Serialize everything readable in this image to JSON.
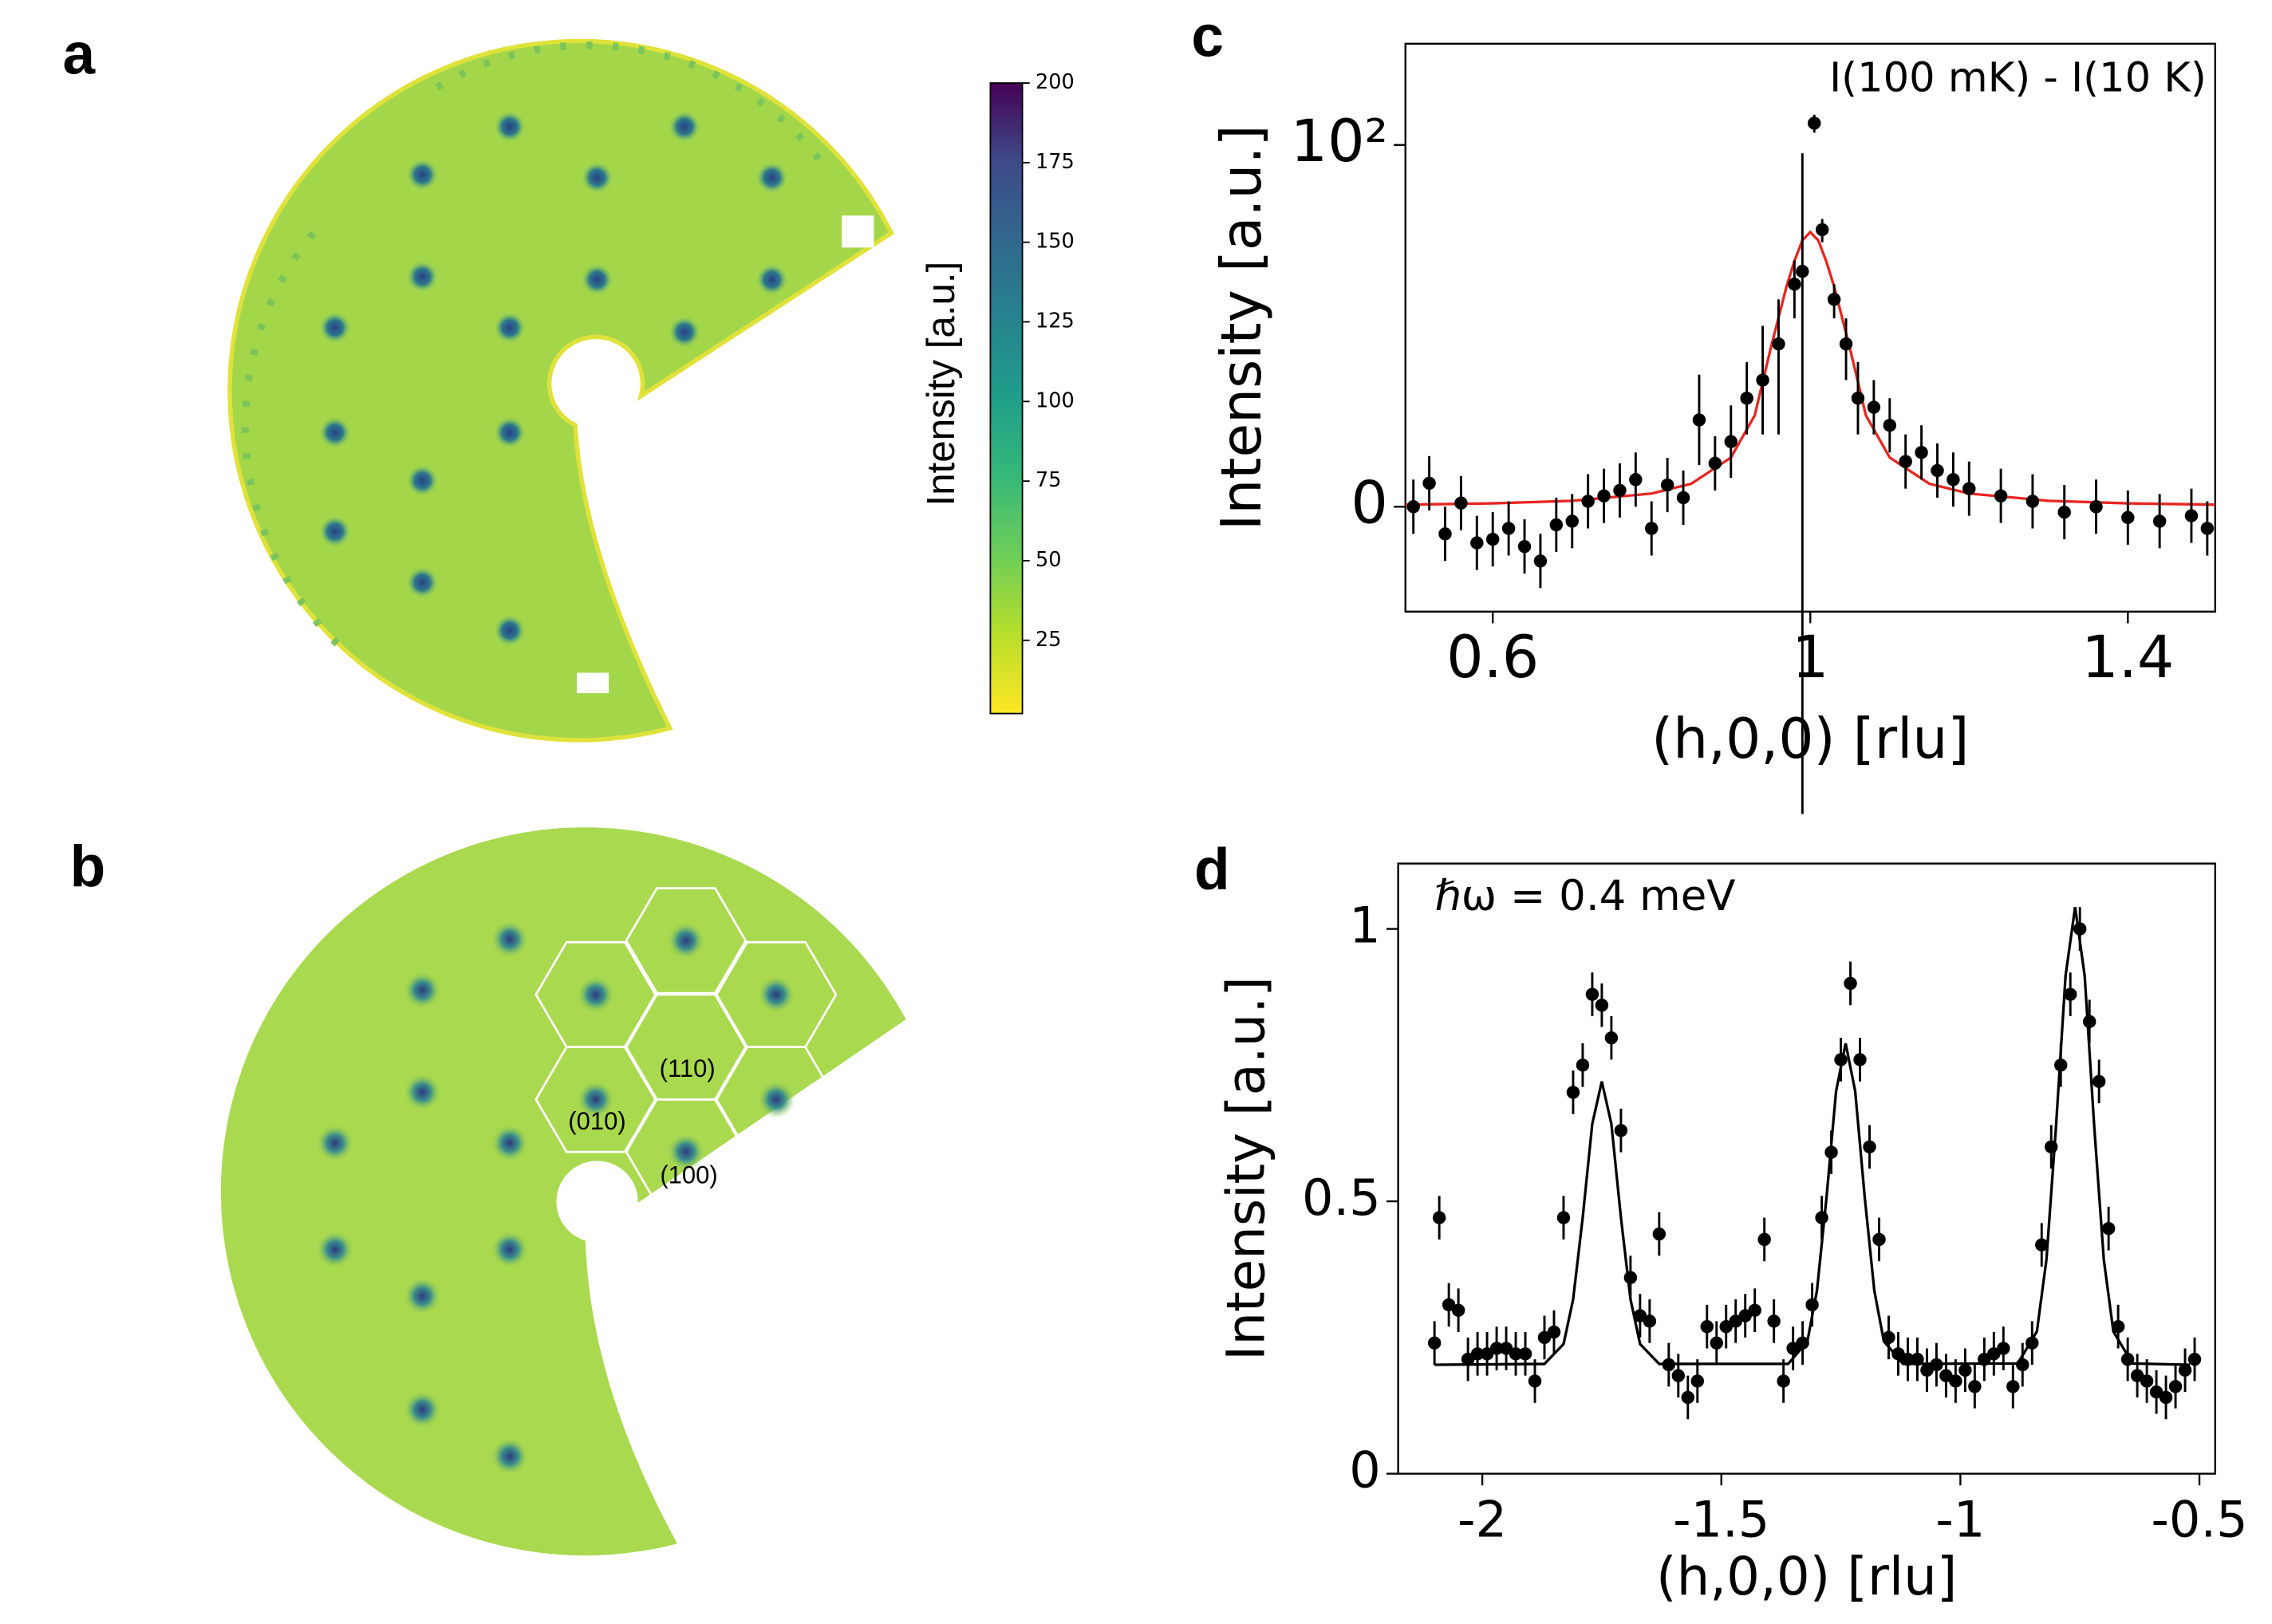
{
  "chart_data": [
    {
      "type": "heatmap",
      "label": "a",
      "colorbar": {
        "label": "Intensity  [a.u.]",
        "lim": [
          2,
          200
        ],
        "ticks": [
          25,
          50,
          75,
          100,
          125,
          150,
          175,
          200
        ]
      }
    },
    {
      "type": "heatmap",
      "label": "b",
      "annotations": [
        "(110)",
        "(010)",
        "(100)"
      ]
    },
    {
      "type": "scatter",
      "label": "c",
      "annotation": "I(100 mK) - I(10 K)",
      "xlabel": "(h,0,0) [rlu]",
      "ylabel": "Intensity [a.u.]",
      "xlim": [
        0.49,
        1.51
      ],
      "xticks": [
        0.6,
        1,
        1.4
      ],
      "ylim": [
        -5.8,
        363
      ],
      "yscale": "symlog",
      "linthresh": 10,
      "yticks": [
        0,
        {
          "value": 100,
          "label": "10²"
        }
      ],
      "color": "#000000",
      "x": [
        0.5,
        0.52,
        0.54,
        0.56,
        0.58,
        0.6,
        0.62,
        0.64,
        0.66,
        0.68,
        0.7,
        0.72,
        0.74,
        0.76,
        0.78,
        0.8,
        0.82,
        0.84,
        0.86,
        0.88,
        0.9,
        0.92,
        0.94,
        0.96,
        0.98,
        0.99,
        1.005,
        1.015,
        1.03,
        1.045,
        1.06,
        1.08,
        1.1,
        1.12,
        1.14,
        1.16,
        1.18,
        1.2,
        1.24,
        1.28,
        1.32,
        1.36,
        1.4,
        1.44,
        1.48,
        1.5
      ],
      "values": [
        0.0,
        1.3,
        -1.5,
        0.2,
        -2.0,
        -1.8,
        -1.2,
        -2.2,
        -3.0,
        -1.0,
        -0.8,
        0.3,
        0.6,
        0.9,
        1.5,
        -1.2,
        1.2,
        0.5,
        4.8,
        2.4,
        3.6,
        6.0,
        7.0,
        9.0,
        17,
        20,
        132,
        34,
        14,
        9,
        6,
        5.5,
        4.5,
        2.5,
        3.0,
        2.0,
        1.5,
        1.0,
        0.6,
        0.3,
        -0.3,
        0.0,
        -0.6,
        -0.8,
        -0.5,
        -1.2
      ],
      "errors": [
        1.5,
        1.5,
        1.5,
        1.5,
        1.5,
        1.5,
        1.5,
        1.5,
        1.5,
        1.5,
        1.5,
        1.5,
        1.5,
        1.5,
        1.5,
        1.5,
        1.5,
        1.5,
        2.5,
        1.5,
        2,
        2,
        3,
        5,
        6,
        70,
        15,
        5,
        3,
        2,
        2,
        1.5,
        1.5,
        1.5,
        1.5,
        1.5,
        1.5,
        1.5,
        1.5,
        1.5,
        1.5,
        1.5,
        1.5,
        1.5,
        1.5,
        1.5
      ],
      "fit": {
        "color": "#e8251f",
        "x": [
          0.49,
          0.6,
          0.7,
          0.8,
          0.85,
          0.9,
          0.93,
          0.95,
          0.97,
          0.98,
          0.99,
          1.0,
          1.01,
          1.02,
          1.03,
          1.05,
          1.07,
          1.1,
          1.15,
          1.2,
          1.3,
          1.4,
          1.51
        ],
        "values": [
          0.114,
          0.185,
          0.327,
          0.728,
          1.27,
          2.72,
          5.05,
          8.74,
          16.5,
          22.8,
          29.7,
          33,
          29.7,
          22.8,
          16.5,
          8.74,
          5.05,
          2.72,
          1.27,
          0.728,
          0.327,
          0.185,
          0.114
        ]
      }
    },
    {
      "type": "scatter",
      "label": "d",
      "annotation": "ℏω = 0.4 meV",
      "xlabel": "(h,0,0) [rlu]",
      "ylabel": "Intensity [a.u.]",
      "xlim": [
        -2.176,
        -0.467
      ],
      "xticks": [
        -2,
        -1.5,
        -1,
        -0.5
      ],
      "ylim": [
        0,
        1.12
      ],
      "yticks": [
        0,
        0.5,
        1
      ],
      "color": "#000000",
      "yerr": 0.04,
      "x": [
        -2.1,
        -2.09,
        -2.07,
        -2.05,
        -2.03,
        -2.01,
        -1.99,
        -1.97,
        -1.95,
        -1.93,
        -1.91,
        -1.89,
        -1.87,
        -1.85,
        -1.83,
        -1.81,
        -1.79,
        -1.77,
        -1.75,
        -1.73,
        -1.71,
        -1.69,
        -1.67,
        -1.65,
        -1.63,
        -1.61,
        -1.59,
        -1.57,
        -1.55,
        -1.53,
        -1.51,
        -1.49,
        -1.47,
        -1.45,
        -1.43,
        -1.41,
        -1.39,
        -1.37,
        -1.35,
        -1.33,
        -1.31,
        -1.29,
        -1.27,
        -1.25,
        -1.23,
        -1.21,
        -1.19,
        -1.17,
        -1.15,
        -1.13,
        -1.11,
        -1.09,
        -1.07,
        -1.05,
        -1.03,
        -1.01,
        -0.99,
        -0.97,
        -0.95,
        -0.93,
        -0.91,
        -0.89,
        -0.87,
        -0.85,
        -0.83,
        -0.81,
        -0.79,
        -0.77,
        -0.75,
        -0.73,
        -0.71,
        -0.69,
        -0.67,
        -0.65,
        -0.63,
        -0.61,
        -0.59,
        -0.57,
        -0.55,
        -0.53,
        -0.51
      ],
      "values": [
        0.24,
        0.47,
        0.31,
        0.3,
        0.21,
        0.22,
        0.22,
        0.23,
        0.23,
        0.22,
        0.22,
        0.17,
        0.25,
        0.26,
        0.47,
        0.7,
        0.75,
        0.88,
        0.86,
        0.8,
        0.63,
        0.36,
        0.29,
        0.28,
        0.44,
        0.2,
        0.18,
        0.14,
        0.17,
        0.27,
        0.24,
        0.27,
        0.28,
        0.29,
        0.3,
        0.43,
        0.28,
        0.17,
        0.23,
        0.24,
        0.31,
        0.47,
        0.59,
        0.76,
        0.9,
        0.76,
        0.6,
        0.43,
        0.25,
        0.22,
        0.21,
        0.21,
        0.19,
        0.2,
        0.18,
        0.17,
        0.19,
        0.16,
        0.21,
        0.22,
        0.23,
        0.16,
        0.2,
        0.24,
        0.42,
        0.6,
        0.75,
        0.88,
        1.0,
        0.83,
        0.72,
        0.45,
        0.27,
        0.21,
        0.18,
        0.17,
        0.15,
        0.14,
        0.16,
        0.19,
        0.21
      ],
      "fit": {
        "color": "#000000",
        "x": [
          -2.1,
          -1.87,
          -1.83,
          -1.81,
          -1.79,
          -1.77,
          -1.75,
          -1.73,
          -1.71,
          -1.69,
          -1.67,
          -1.63,
          -1.36,
          -1.32,
          -1.3,
          -1.28,
          -1.26,
          -1.24,
          -1.22,
          -1.2,
          -1.18,
          -1.16,
          -1.12,
          -0.88,
          -0.84,
          -0.82,
          -0.8,
          -0.78,
          -0.76,
          -0.74,
          -0.72,
          -0.7,
          -0.68,
          -0.64,
          -0.52
        ],
        "values": [
          0.2,
          0.2015,
          0.238,
          0.32,
          0.47,
          0.642,
          0.72,
          0.642,
          0.47,
          0.32,
          0.238,
          0.2015,
          0.2017,
          0.243,
          0.336,
          0.507,
          0.702,
          0.79,
          0.702,
          0.507,
          0.336,
          0.243,
          0.2017,
          0.2024,
          0.261,
          0.393,
          0.637,
          0.914,
          1.04,
          0.914,
          0.637,
          0.393,
          0.261,
          0.2024,
          0.2
        ]
      }
    }
  ]
}
